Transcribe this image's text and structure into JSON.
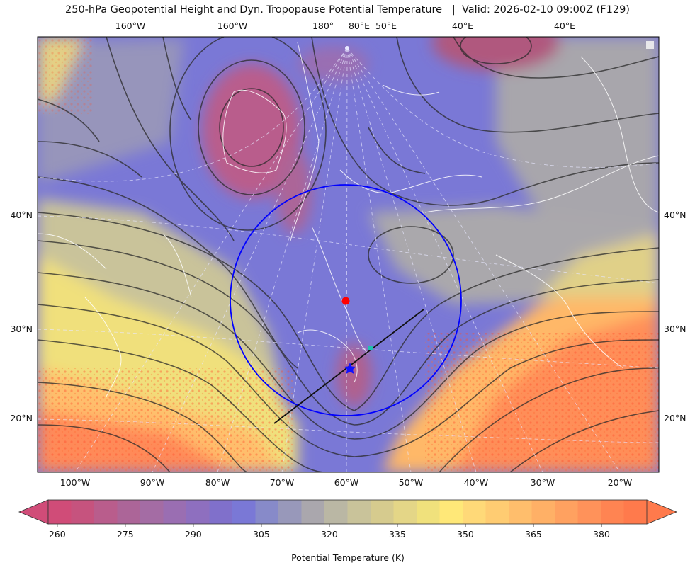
{
  "title": "250-hPa Geopotential Height and Dyn. Tropopause Potential Temperature   |  Valid: 2026-02-10 09:00Z (F129)",
  "axes": {
    "top_lon_labels": [
      "160°W",
      "160°W",
      "180°",
      "80°E",
      "50°E",
      "40°E",
      "40°E"
    ],
    "bottom_lon_labels": [
      "100°W",
      "90°W",
      "80°W",
      "70°W",
      "60°W",
      "50°W",
      "40°W",
      "30°W",
      "20°W"
    ],
    "left_lat_labels": [
      "40°N",
      "30°N",
      "20°N"
    ],
    "right_lat_labels": [
      "40°N",
      "30°N",
      "20°N"
    ]
  },
  "colorbar": {
    "label": "Potential Temperature (K)",
    "min": 258,
    "max": 390,
    "step": 5,
    "extend": "both",
    "ticks": [
      "260",
      "275",
      "290",
      "305",
      "320",
      "335",
      "350",
      "365",
      "380"
    ],
    "colors": [
      "#d04c78",
      "#c6537e",
      "#b95d8c",
      "#ac6598",
      "#a46ca4",
      "#9a6eb2",
      "#8e6fbf",
      "#8070cb",
      "#7a78d6",
      "#878ac9",
      "#9898ba",
      "#aaa7ad",
      "#bab7a4",
      "#c9c39a",
      "#d6cb8e",
      "#e4d687",
      "#f0e17c",
      "#ffe878",
      "#ffd978",
      "#ffcc72",
      "#ffbe6c",
      "#ffb066",
      "#ffa160",
      "#ff925a",
      "#ff8452",
      "#ff7a4c"
    ]
  },
  "annotations": {
    "circle_color": "#0000ff",
    "center_marker_color": "#ff0000",
    "star_marker_color": "#1010ff",
    "line_color": "#111111",
    "teal_marker_color": "#20c0b0"
  }
}
